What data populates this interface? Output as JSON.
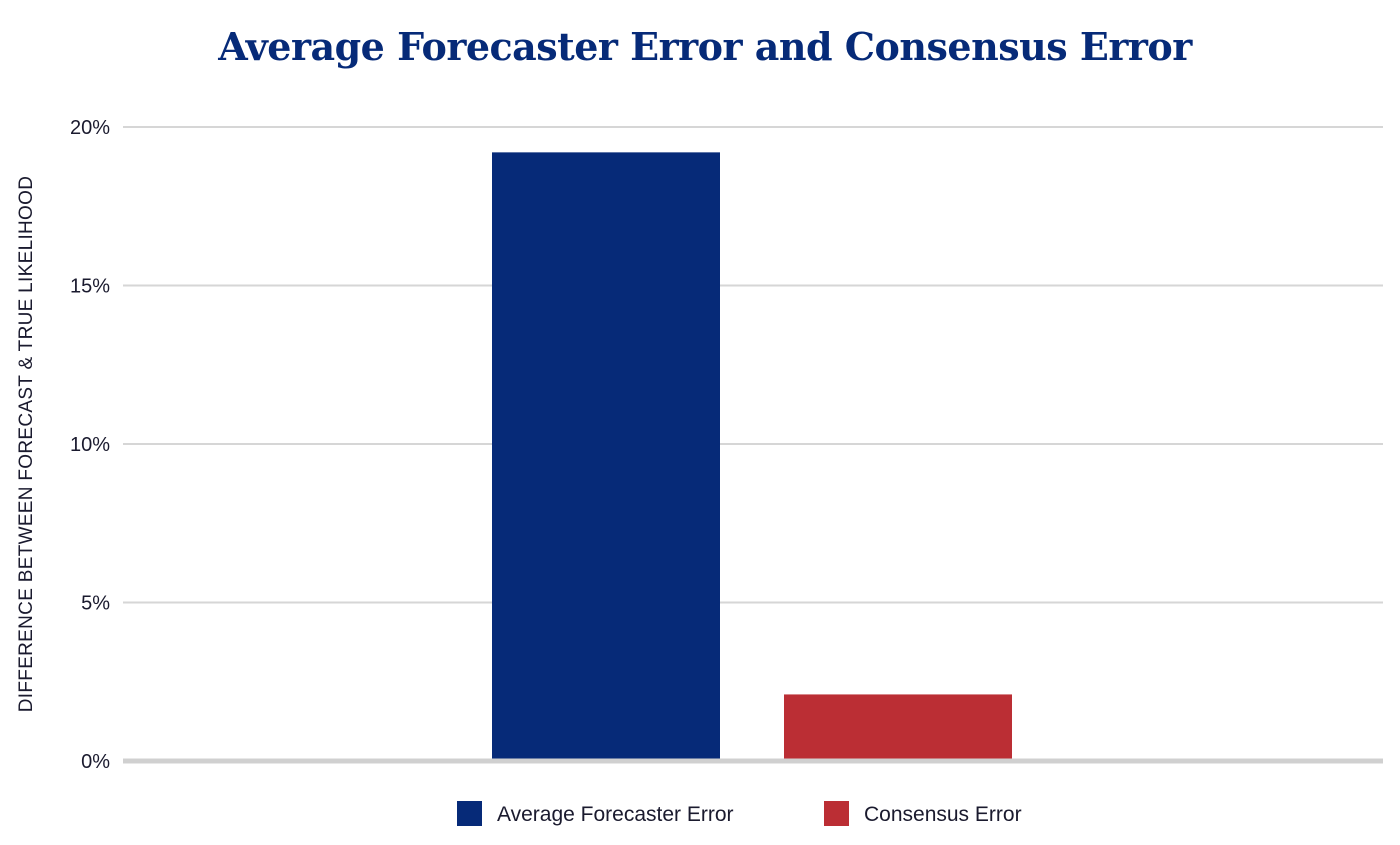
{
  "chart_data": {
    "type": "bar",
    "title": "Average Forecaster Error and Consensus Error",
    "xlabel": "",
    "ylabel": "DIFFERENCE BETWEEN FORECAST & TRUE LIKELIHOOD",
    "ylim": [
      0,
      20
    ],
    "yticks": [
      0,
      5,
      10,
      15,
      20
    ],
    "ytick_labels": [
      "0%",
      "5%",
      "10%",
      "15%",
      "20%"
    ],
    "grid": true,
    "legend_position": "bottom",
    "series": [
      {
        "name": "Average Forecaster Error",
        "values": [
          19.2
        ],
        "color": "#062a78"
      },
      {
        "name": "Consensus Error",
        "values": [
          2.1
        ],
        "color": "#bb2e34"
      }
    ]
  },
  "colors": {
    "title": "#062a78",
    "text": "#1a1a2e",
    "grid": "#d6d6d6",
    "baseline": "#d0d0d0"
  }
}
